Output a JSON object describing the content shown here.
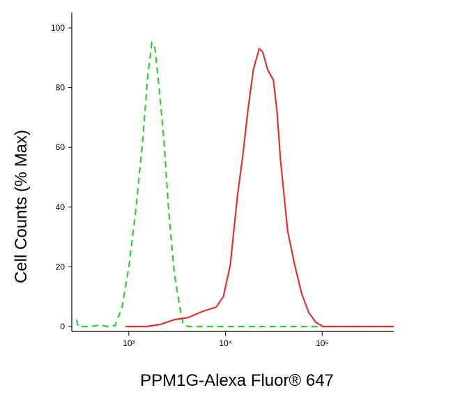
{
  "chart_data": {
    "type": "line",
    "x_label": "PPM1G-Alexa Fluor® 647",
    "y_label": "Cell Counts (% Max)",
    "xscale": "log",
    "xlim": [
      257,
      550000
    ],
    "ylim": [
      0,
      100
    ],
    "xticks": [
      {
        "value": 1000,
        "label": "10³"
      },
      {
        "value": 10000,
        "label": "10⁴"
      },
      {
        "value": 100000,
        "label": "10⁵"
      }
    ],
    "yticks": [
      0,
      20,
      40,
      60,
      80,
      100
    ],
    "series": [
      {
        "color": "#33cc33",
        "dash": true,
        "x": [
          288,
          300,
          320,
          400,
          500,
          600,
          720,
          850,
          1000,
          1180,
          1390,
          1570,
          1730,
          1850,
          2040,
          2300,
          2580,
          2950,
          3370,
          3660,
          4100,
          10000,
          100000,
          550000
        ],
        "values": [
          2.3,
          0,
          0,
          0,
          0.5,
          0,
          0.3,
          6.5,
          20,
          39,
          62,
          84,
          95,
          94,
          81,
          63,
          39,
          18,
          6.5,
          0.7,
          0,
          0,
          0,
          0
        ]
      },
      {
        "color": "#e53030",
        "dash": false,
        "x": [
          920,
          1510,
          2110,
          2950,
          4100,
          5700,
          8000,
          9500,
          11200,
          13300,
          15200,
          17000,
          19400,
          22300,
          24200,
          27300,
          31300,
          34100,
          37000,
          43900,
          51900,
          61400,
          72600,
          86000,
          102000,
          550000
        ],
        "values": [
          0,
          0,
          0.7,
          2.3,
          3,
          5,
          6.5,
          10,
          20.6,
          44,
          58,
          72,
          86,
          93,
          92,
          86,
          82.5,
          72,
          56,
          32,
          20.6,
          11,
          4.7,
          1.4,
          0,
          0
        ]
      }
    ]
  }
}
